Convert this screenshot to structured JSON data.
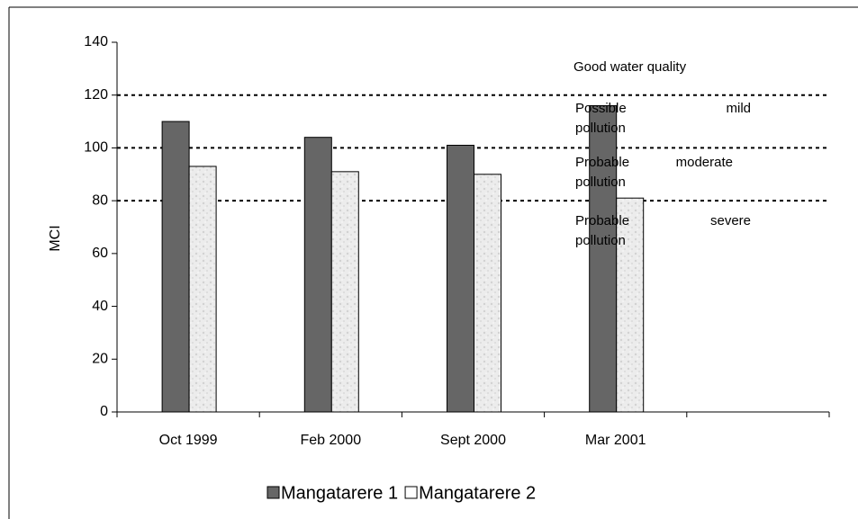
{
  "chart_data": {
    "type": "bar",
    "y_label": "MCI",
    "categories": [
      "Oct 1999",
      "Feb 2000",
      "Sept 2000",
      "Mar 2001",
      null
    ],
    "series": [
      {
        "name": "Mangatarere 1",
        "color": "#666666",
        "values": [
          110,
          104,
          101,
          116,
          null
        ]
      },
      {
        "name": "Mangatarere 2",
        "color": "#ececec",
        "values": [
          93,
          91,
          90,
          81,
          null
        ]
      }
    ],
    "ylim": [
      0,
      140
    ],
    "yticks": [
      0,
      20,
      40,
      60,
      80,
      100,
      120,
      140
    ],
    "reference_lines": [
      80,
      100,
      120
    ],
    "annotations": [
      {
        "lines": [
          "Good water quality"
        ]
      },
      {
        "lines": [
          "Possible mild",
          "pollution"
        ]
      },
      {
        "lines": [
          "Probable moderate",
          "pollution"
        ]
      },
      {
        "lines": [
          "Probable severe",
          "pollution"
        ]
      }
    ],
    "legend": "bottom"
  }
}
